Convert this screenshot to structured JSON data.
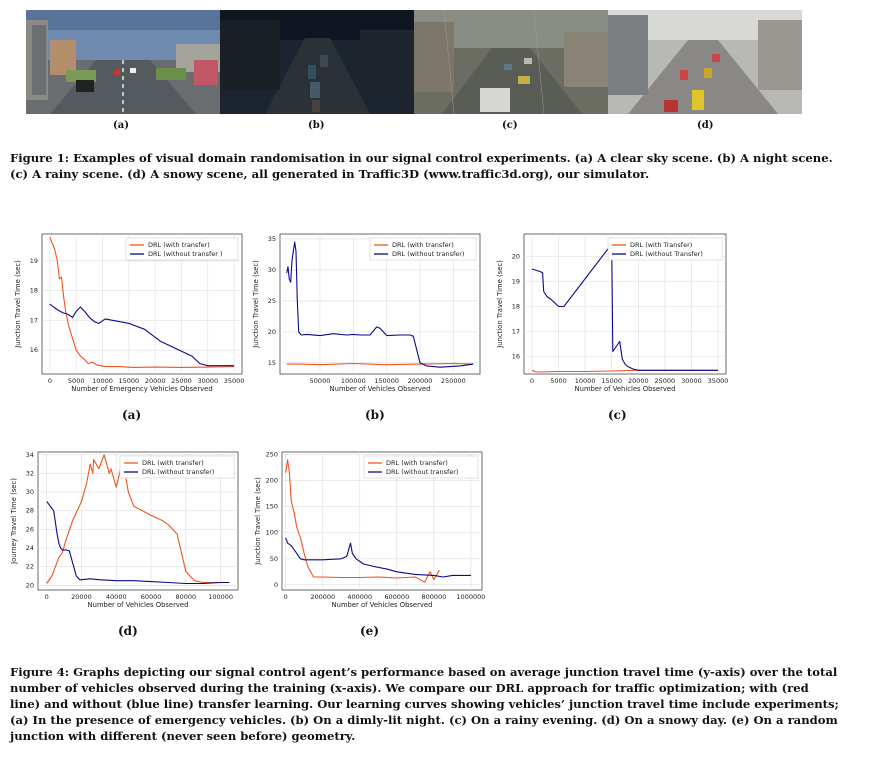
{
  "figure1": {
    "panels": [
      {
        "label": "(a)",
        "scene": "clear"
      },
      {
        "label": "(b)",
        "scene": "night"
      },
      {
        "label": "(c)",
        "scene": "rainy"
      },
      {
        "label": "(d)",
        "scene": "snowy"
      }
    ],
    "caption_line1": "Figure 1: Examples of visual domain randomisation in our signal control experiments. (a) A clear sky scene. (b) A night scene.",
    "caption_line2": "(c) A rainy scene. (d) A snowy scene, all generated in Traffic3D (www.traffic3d.org), our simulator."
  },
  "figure4": {
    "caption_lines": [
      "Figure 4: Graphs depicting our signal control agent’s performance based on average junction travel time (y-axis) over the total",
      "number of vehicles observed during the training (x-axis). We compare our DRL approach for traffic optimization; with (red",
      "line) and without (blue line) transfer learning. Our learning curves showing vehicles’ junction travel time include experiments;",
      "(a) In the presence of emergency vehicles. (b) On a dimly-lit night. (c) On a rainy evening. (d) On a snowy day. (e) On a random",
      "junction with different (never seen before) geometry."
    ],
    "colors": {
      "with_transfer": "#f0541e",
      "without_transfer": "#0a0a8c"
    }
  },
  "chart_data": [
    {
      "type": "line",
      "panel_label": "(a)",
      "xlabel": "Number of Emergency Vehicles Observed",
      "ylabel": "Junction Travel Time (sec)",
      "xlim": [
        -1500,
        36500
      ],
      "ylim": [
        15.2,
        19.9
      ],
      "xticks": [
        0,
        5000,
        10000,
        15000,
        20000,
        25000,
        30000,
        35000
      ],
      "yticks": [
        16,
        17,
        18,
        19
      ],
      "series": [
        {
          "name": "DRL (with transfer)",
          "color_key": "with_transfer",
          "x": [
            0,
            400,
            900,
            1400,
            1800,
            2200,
            2600,
            3000,
            3600,
            4300,
            5000,
            5800,
            6500,
            7300,
            8000,
            9000,
            10500,
            13000,
            16000,
            20000,
            25000,
            30000,
            35000
          ],
          "y": [
            19.8,
            19.6,
            19.4,
            19.0,
            18.4,
            18.45,
            17.8,
            17.3,
            16.8,
            16.4,
            16.0,
            15.8,
            15.7,
            15.55,
            15.6,
            15.5,
            15.45,
            15.45,
            15.42,
            15.43,
            15.42,
            15.43,
            15.45
          ]
        },
        {
          "name": "DRL (without transfer )",
          "color_key": "without_transfer",
          "x": [
            0,
            700,
            1500,
            2500,
            3500,
            4300,
            5000,
            5800,
            6600,
            7500,
            8500,
            9300,
            10500,
            12000,
            15000,
            18000,
            21000,
            24000,
            27000,
            28500,
            30000,
            33000,
            35000
          ],
          "y": [
            17.55,
            17.45,
            17.35,
            17.25,
            17.2,
            17.1,
            17.3,
            17.45,
            17.3,
            17.1,
            16.95,
            16.9,
            17.05,
            17.0,
            16.9,
            16.7,
            16.3,
            16.05,
            15.8,
            15.55,
            15.48,
            15.48,
            15.48
          ]
        }
      ],
      "legend": "top-right"
    },
    {
      "type": "line",
      "panel_label": "(b)",
      "xlabel": "Number of Vehicles Observed",
      "ylabel": "Junction Travel Time (sec)",
      "xlim": [
        -10000,
        290000
      ],
      "ylim": [
        13.2,
        35.8
      ],
      "xticks": [
        50000,
        100000,
        150000,
        200000,
        250000
      ],
      "xtick_labels": [
        "50000",
        "100000",
        "150000",
        "200000",
        "250000"
      ],
      "yticks": [
        15,
        20,
        25,
        30,
        35
      ],
      "series": [
        {
          "name": "DRL (with transfer)",
          "color_key": "with_transfer",
          "x": [
            0,
            20000,
            50000,
            100000,
            150000,
            200000,
            250000,
            280000
          ],
          "y": [
            14.8,
            14.8,
            14.7,
            14.9,
            14.7,
            14.8,
            14.9,
            14.8
          ]
        },
        {
          "name": "DRL (without transfer)",
          "color_key": "without_transfer",
          "x": [
            0,
            2000,
            4000,
            6000,
            8000,
            10000,
            12000,
            14000,
            16000,
            18000,
            22000,
            30000,
            50000,
            70000,
            90000,
            100000,
            110000,
            125000,
            135000,
            140000,
            150000,
            170000,
            185000,
            190000,
            200000,
            210000,
            230000,
            260000,
            280000
          ],
          "y": [
            29.5,
            30.5,
            28.5,
            28.0,
            31.5,
            33.0,
            34.5,
            33.0,
            25.0,
            20.0,
            19.5,
            19.6,
            19.4,
            19.7,
            19.5,
            19.6,
            19.5,
            19.5,
            20.8,
            20.6,
            19.4,
            19.5,
            19.5,
            19.3,
            15.0,
            14.5,
            14.3,
            14.5,
            14.8
          ]
        }
      ],
      "legend": "top-right"
    },
    {
      "type": "line",
      "panel_label": "(c)",
      "xlabel": "Number of Vehicles Observed",
      "ylabel": "Junction Travel Time (sec)",
      "xlim": [
        -1500,
        36500
      ],
      "ylim": [
        15.3,
        20.9
      ],
      "xticks": [
        0,
        5000,
        10000,
        15000,
        20000,
        25000,
        30000,
        35000
      ],
      "yticks": [
        16,
        17,
        18,
        19,
        20
      ],
      "series": [
        {
          "name": "DRL (with Transfer)",
          "color_key": "with_transfer",
          "x": [
            0,
            500,
            1000,
            5000,
            10000,
            15000,
            20000,
            25000,
            30000,
            35000
          ],
          "y": [
            15.45,
            15.4,
            15.38,
            15.4,
            15.4,
            15.42,
            15.45,
            15.45,
            15.45,
            15.45
          ]
        },
        {
          "name": "DRL (without Transfer)",
          "color_key": "without_transfer",
          "x": [
            0,
            1500,
            2000,
            2200,
            2800,
            3500,
            5000,
            6000,
            15000,
            15200,
            16500,
            17000,
            17500,
            18000,
            19000,
            20000,
            25000,
            30000,
            35000
          ],
          "y": [
            19.5,
            19.4,
            19.35,
            18.6,
            18.4,
            18.3,
            18.0,
            18.0,
            20.5,
            16.2,
            16.6,
            15.9,
            15.7,
            15.6,
            15.5,
            15.45,
            15.45,
            15.45,
            15.45
          ]
        }
      ],
      "legend": "top-right"
    },
    {
      "type": "line",
      "panel_label": "(d)",
      "xlabel": "Number of Vehicles Observed",
      "ylabel": "Journey Travel Time (sec)",
      "xlim": [
        -5000,
        110000
      ],
      "ylim": [
        19.5,
        34.3
      ],
      "xticks": [
        0,
        20000,
        40000,
        60000,
        80000,
        100000
      ],
      "yticks": [
        20,
        22,
        24,
        26,
        28,
        30,
        32,
        34
      ],
      "series": [
        {
          "name": "DRL (with transfer)",
          "color_key": "with_transfer",
          "x": [
            0,
            3000,
            5000,
            7000,
            9000,
            11000,
            15000,
            20000,
            23000,
            25000,
            26500,
            27000,
            30000,
            32000,
            33000,
            36000,
            37000,
            40000,
            43000,
            45000,
            47000,
            50000,
            55000,
            60000,
            66000,
            70000,
            75000,
            80000,
            85000,
            90000,
            100000,
            105000
          ],
          "y": [
            20.2,
            21.0,
            22.0,
            23.0,
            23.5,
            24.8,
            27.0,
            29.0,
            31.0,
            33.0,
            32.0,
            33.5,
            32.5,
            33.5,
            34.0,
            32.0,
            32.5,
            30.5,
            33.0,
            32.0,
            30.0,
            28.5,
            28.0,
            27.5,
            27.0,
            26.5,
            25.5,
            21.5,
            20.5,
            20.3,
            20.3,
            20.3
          ]
        },
        {
          "name": "DRL (without transfer)",
          "color_key": "without_transfer",
          "x": [
            0,
            2000,
            4000,
            6000,
            7000,
            8000,
            9000,
            11000,
            13000,
            17000,
            19000,
            20000,
            25000,
            30000,
            40000,
            50000,
            60000,
            70000,
            80000,
            90000,
            100000,
            105000
          ],
          "y": [
            29.0,
            28.5,
            28.0,
            25.5,
            24.5,
            24.0,
            23.8,
            23.8,
            23.7,
            21.0,
            20.6,
            20.6,
            20.7,
            20.6,
            20.5,
            20.5,
            20.4,
            20.3,
            20.2,
            20.2,
            20.3,
            20.3
          ]
        }
      ],
      "legend": "top-right"
    },
    {
      "type": "line",
      "panel_label": "(e)",
      "xlabel": "Number of Vehicles Observed",
      "ylabel": "Junction Travel Time (sec)",
      "xlim": [
        -20000,
        1060000
      ],
      "ylim": [
        -10,
        255
      ],
      "xticks": [
        0,
        200000,
        400000,
        600000,
        800000,
        1000000
      ],
      "yticks": [
        0,
        50,
        100,
        150,
        200,
        250
      ],
      "series": [
        {
          "name": "DRL (with transfer)",
          "color_key": "with_transfer",
          "x": [
            0,
            10000,
            20000,
            30000,
            45000,
            60000,
            80000,
            100000,
            120000,
            150000,
            200000,
            300000,
            400000,
            500000,
            600000,
            700000,
            750000,
            780000,
            800000,
            830000
          ],
          "y": [
            215,
            240,
            215,
            160,
            140,
            110,
            90,
            60,
            35,
            15,
            15,
            14,
            14,
            15,
            13,
            15,
            5,
            25,
            10,
            28
          ]
        },
        {
          "name": "DRL (without transfer)",
          "color_key": "without_transfer",
          "x": [
            0,
            10000,
            30000,
            50000,
            80000,
            100000,
            150000,
            200000,
            300000,
            330000,
            350000,
            360000,
            380000,
            420000,
            480000,
            550000,
            600000,
            700000,
            800000,
            850000,
            900000,
            1000000
          ],
          "y": [
            90,
            80,
            75,
            65,
            50,
            48,
            48,
            48,
            50,
            55,
            80,
            60,
            50,
            40,
            35,
            30,
            25,
            20,
            18,
            15,
            18,
            18
          ]
        }
      ],
      "legend": "top-right"
    }
  ]
}
